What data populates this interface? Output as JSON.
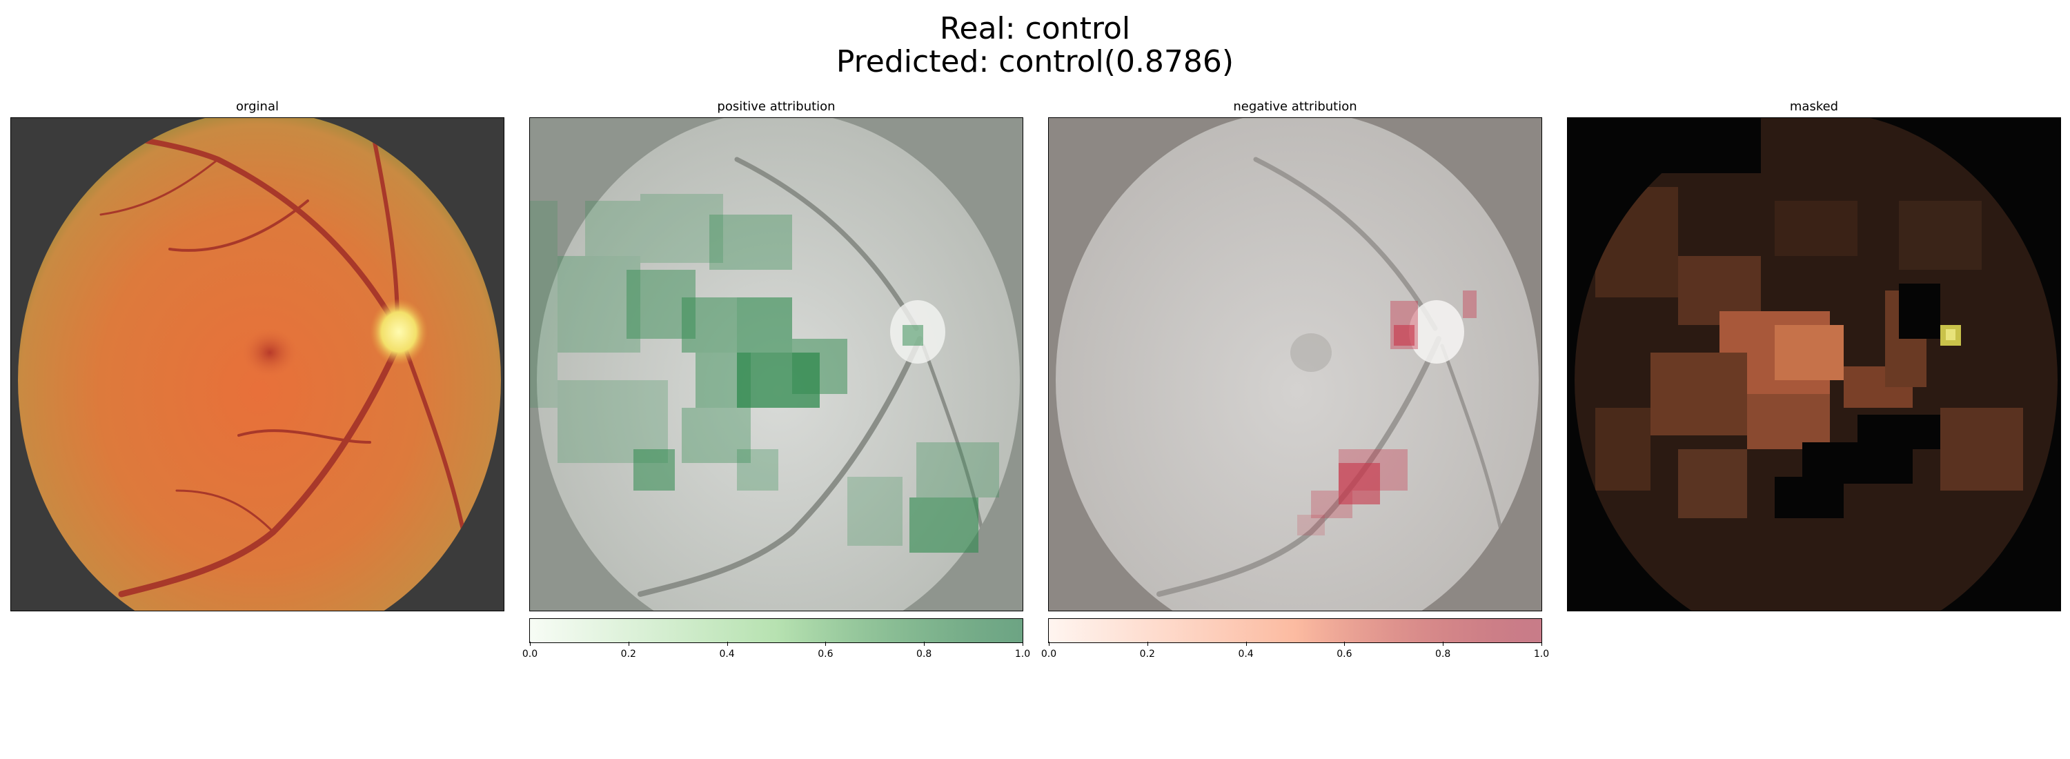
{
  "figure": {
    "title_line1": "Real: control",
    "title_line2": "Predicted: control(0.8786)"
  },
  "panels": [
    {
      "title": "orginal"
    },
    {
      "title": "positive attribution"
    },
    {
      "title": "negative attribution"
    },
    {
      "title": "masked"
    }
  ],
  "colorbars": [
    {
      "ticks": [
        "0.0",
        "0.2",
        "0.4",
        "0.6",
        "0.8",
        "1.0"
      ],
      "colormap": "Greens",
      "color_high": "#2e7d4f"
    },
    {
      "ticks": [
        "0.0",
        "0.2",
        "0.4",
        "0.6",
        "0.8",
        "1.0"
      ],
      "colormap": "Reds",
      "color_high": "#a3243a"
    }
  ]
}
